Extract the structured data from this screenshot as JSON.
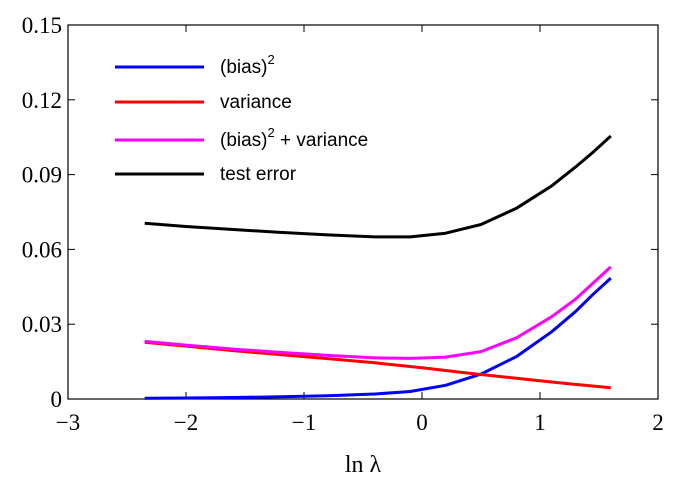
{
  "chart_data": {
    "type": "line",
    "title": "",
    "xlabel": "ln λ",
    "ylabel": "",
    "xlim": [
      -3,
      2
    ],
    "ylim": [
      0,
      0.15
    ],
    "xticks": [
      -3,
      -2,
      -1,
      0,
      1,
      2
    ],
    "xtick_labels": [
      "−3",
      "−2",
      "−1",
      "0",
      "1",
      "2"
    ],
    "yticks": [
      0,
      0.03,
      0.06,
      0.09,
      0.12,
      0.15
    ],
    "ytick_labels": [
      "0",
      "0.03",
      "0.06",
      "0.09",
      "0.12",
      "0.15"
    ],
    "grid": false,
    "legend_position": "top-left",
    "series": [
      {
        "name": "(bias)2",
        "legend_base": "(bias)",
        "legend_sup": "2",
        "legend_rest": "",
        "color": "#0000ff",
        "x": [
          -2.35,
          -2.0,
          -1.6,
          -1.2,
          -0.8,
          -0.4,
          -0.1,
          0.2,
          0.5,
          0.8,
          1.1,
          1.3,
          1.45,
          1.6
        ],
        "y": [
          0.0003,
          0.0004,
          0.0006,
          0.0009,
          0.0013,
          0.002,
          0.003,
          0.0055,
          0.01,
          0.017,
          0.027,
          0.035,
          0.042,
          0.0485
        ]
      },
      {
        "name": "variance",
        "legend_base": "variance",
        "legend_sup": "",
        "legend_rest": "",
        "color": "#ff0000",
        "x": [
          -2.35,
          -2.0,
          -1.6,
          -1.2,
          -0.8,
          -0.4,
          0.0,
          0.4,
          0.8,
          1.2,
          1.6
        ],
        "y": [
          0.0228,
          0.0212,
          0.0194,
          0.0178,
          0.0162,
          0.0145,
          0.0125,
          0.0103,
          0.0083,
          0.0063,
          0.0045
        ]
      },
      {
        "name": "(bias)2 + variance",
        "legend_base": "(bias)",
        "legend_sup": "2",
        "legend_rest": " + variance",
        "color": "#ff00ff",
        "x": [
          -2.35,
          -2.0,
          -1.6,
          -1.2,
          -0.8,
          -0.4,
          -0.1,
          0.2,
          0.5,
          0.8,
          1.1,
          1.3,
          1.45,
          1.6
        ],
        "y": [
          0.0231,
          0.0216,
          0.02,
          0.0187,
          0.0175,
          0.0165,
          0.0163,
          0.0168,
          0.019,
          0.0245,
          0.033,
          0.04,
          0.0465,
          0.053
        ]
      },
      {
        "name": "test error",
        "legend_base": "test error",
        "legend_sup": "",
        "legend_rest": "",
        "color": "#000000",
        "x": [
          -2.35,
          -2.0,
          -1.6,
          -1.2,
          -0.8,
          -0.4,
          -0.1,
          0.2,
          0.5,
          0.8,
          1.1,
          1.3,
          1.45,
          1.6
        ],
        "y": [
          0.0705,
          0.0692,
          0.068,
          0.0668,
          0.0658,
          0.065,
          0.065,
          0.0665,
          0.07,
          0.0765,
          0.0855,
          0.093,
          0.099,
          0.1055
        ]
      }
    ]
  }
}
